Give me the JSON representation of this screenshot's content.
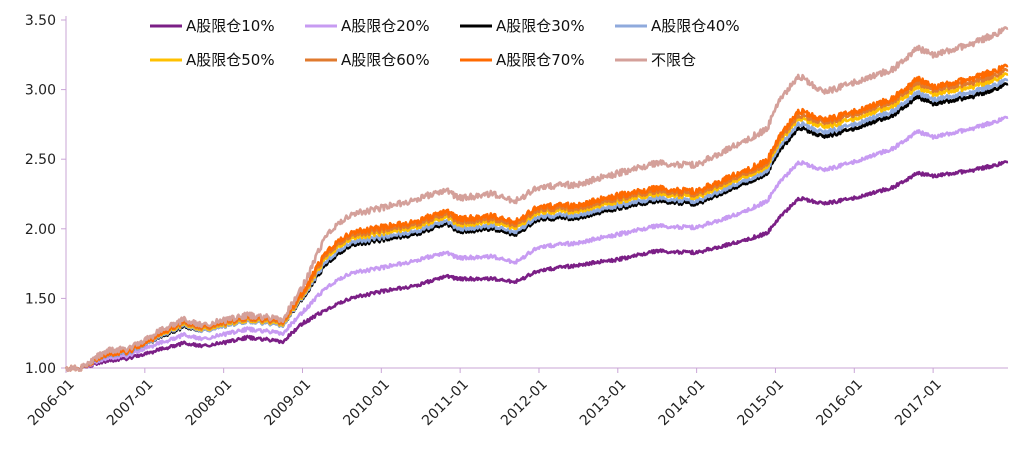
{
  "chart_data": {
    "type": "line",
    "title": "",
    "xlabel": "",
    "ylabel": "",
    "ylim": [
      1.0,
      3.5
    ],
    "y_ticks": [
      "1.00",
      "1.50",
      "2.00",
      "2.50",
      "3.00",
      "3.50"
    ],
    "x_ticks": [
      "2006-01",
      "2007-01",
      "2008-01",
      "2009-01",
      "2010-01",
      "2011-01",
      "2012-01",
      "2013-01",
      "2014-01",
      "2015-01",
      "2016-01",
      "2017-01"
    ],
    "x_range": [
      2006.0,
      2017.95
    ],
    "legend_position": "top",
    "grid": false,
    "series": [
      {
        "name": "A股限仓10%",
        "color": "#7B1F86",
        "points": [
          [
            2006.0,
            1.0
          ],
          [
            2006.2,
            1.0
          ],
          [
            2006.5,
            1.05
          ],
          [
            2006.8,
            1.07
          ],
          [
            2007.0,
            1.1
          ],
          [
            2007.3,
            1.15
          ],
          [
            2007.5,
            1.18
          ],
          [
            2007.75,
            1.16
          ],
          [
            2008.0,
            1.18
          ],
          [
            2008.3,
            1.22
          ],
          [
            2008.6,
            1.2
          ],
          [
            2008.75,
            1.19
          ],
          [
            2009.0,
            1.32
          ],
          [
            2009.3,
            1.42
          ],
          [
            2009.6,
            1.5
          ],
          [
            2010.0,
            1.55
          ],
          [
            2010.5,
            1.6
          ],
          [
            2010.8,
            1.66
          ],
          [
            2011.0,
            1.64
          ],
          [
            2011.4,
            1.64
          ],
          [
            2011.7,
            1.62
          ],
          [
            2012.0,
            1.7
          ],
          [
            2012.5,
            1.74
          ],
          [
            2013.0,
            1.78
          ],
          [
            2013.5,
            1.84
          ],
          [
            2014.0,
            1.83
          ],
          [
            2014.5,
            1.9
          ],
          [
            2014.9,
            1.97
          ],
          [
            2015.0,
            2.05
          ],
          [
            2015.3,
            2.22
          ],
          [
            2015.6,
            2.18
          ],
          [
            2016.0,
            2.22
          ],
          [
            2016.5,
            2.3
          ],
          [
            2016.8,
            2.4
          ],
          [
            2017.0,
            2.38
          ],
          [
            2017.5,
            2.42
          ],
          [
            2017.95,
            2.48
          ]
        ]
      },
      {
        "name": "A股限仓20%",
        "color": "#C79BF2",
        "points": [
          [
            2006.0,
            1.0
          ],
          [
            2006.2,
            1.0
          ],
          [
            2006.5,
            1.07
          ],
          [
            2006.8,
            1.09
          ],
          [
            2007.0,
            1.14
          ],
          [
            2007.3,
            1.2
          ],
          [
            2007.5,
            1.24
          ],
          [
            2007.75,
            1.21
          ],
          [
            2008.0,
            1.24
          ],
          [
            2008.3,
            1.28
          ],
          [
            2008.6,
            1.26
          ],
          [
            2008.75,
            1.25
          ],
          [
            2009.0,
            1.4
          ],
          [
            2009.3,
            1.58
          ],
          [
            2009.6,
            1.68
          ],
          [
            2010.0,
            1.72
          ],
          [
            2010.5,
            1.78
          ],
          [
            2010.8,
            1.83
          ],
          [
            2011.0,
            1.79
          ],
          [
            2011.4,
            1.8
          ],
          [
            2011.7,
            1.76
          ],
          [
            2012.0,
            1.87
          ],
          [
            2012.5,
            1.9
          ],
          [
            2013.0,
            1.96
          ],
          [
            2013.5,
            2.02
          ],
          [
            2014.0,
            2.01
          ],
          [
            2014.5,
            2.1
          ],
          [
            2014.9,
            2.2
          ],
          [
            2015.0,
            2.3
          ],
          [
            2015.3,
            2.48
          ],
          [
            2015.6,
            2.42
          ],
          [
            2016.0,
            2.48
          ],
          [
            2016.5,
            2.58
          ],
          [
            2016.8,
            2.7
          ],
          [
            2017.0,
            2.66
          ],
          [
            2017.5,
            2.72
          ],
          [
            2017.95,
            2.8
          ]
        ]
      },
      {
        "name": "A股限仓30%",
        "color": "#000000",
        "points": [
          [
            2006.0,
            1.0
          ],
          [
            2006.2,
            1.0
          ],
          [
            2006.5,
            1.09
          ],
          [
            2006.8,
            1.11
          ],
          [
            2007.0,
            1.17
          ],
          [
            2007.3,
            1.25
          ],
          [
            2007.5,
            1.3
          ],
          [
            2007.75,
            1.27
          ],
          [
            2008.0,
            1.3
          ],
          [
            2008.3,
            1.34
          ],
          [
            2008.6,
            1.32
          ],
          [
            2008.75,
            1.31
          ],
          [
            2009.0,
            1.5
          ],
          [
            2009.3,
            1.75
          ],
          [
            2009.6,
            1.88
          ],
          [
            2010.0,
            1.92
          ],
          [
            2010.5,
            1.97
          ],
          [
            2010.8,
            2.04
          ],
          [
            2011.0,
            1.98
          ],
          [
            2011.4,
            2.0
          ],
          [
            2011.7,
            1.96
          ],
          [
            2012.0,
            2.07
          ],
          [
            2012.5,
            2.08
          ],
          [
            2013.0,
            2.15
          ],
          [
            2013.5,
            2.2
          ],
          [
            2014.0,
            2.18
          ],
          [
            2014.5,
            2.3
          ],
          [
            2014.9,
            2.4
          ],
          [
            2015.0,
            2.52
          ],
          [
            2015.3,
            2.73
          ],
          [
            2015.6,
            2.66
          ],
          [
            2016.0,
            2.72
          ],
          [
            2016.5,
            2.82
          ],
          [
            2016.8,
            2.95
          ],
          [
            2017.0,
            2.9
          ],
          [
            2017.5,
            2.95
          ],
          [
            2017.95,
            3.04
          ]
        ]
      },
      {
        "name": "A股限仓40%",
        "color": "#8FAADC",
        "points": [
          [
            2006.0,
            1.0
          ],
          [
            2006.2,
            1.0
          ],
          [
            2006.5,
            1.09
          ],
          [
            2006.8,
            1.11
          ],
          [
            2007.0,
            1.17
          ],
          [
            2007.3,
            1.26
          ],
          [
            2007.5,
            1.31
          ],
          [
            2007.75,
            1.27
          ],
          [
            2008.0,
            1.3
          ],
          [
            2008.3,
            1.34
          ],
          [
            2008.6,
            1.32
          ],
          [
            2008.75,
            1.31
          ],
          [
            2009.0,
            1.51
          ],
          [
            2009.3,
            1.77
          ],
          [
            2009.6,
            1.9
          ],
          [
            2010.0,
            1.94
          ],
          [
            2010.5,
            1.99
          ],
          [
            2010.8,
            2.06
          ],
          [
            2011.0,
            2.0
          ],
          [
            2011.4,
            2.02
          ],
          [
            2011.7,
            1.98
          ],
          [
            2012.0,
            2.09
          ],
          [
            2012.5,
            2.1
          ],
          [
            2013.0,
            2.17
          ],
          [
            2013.5,
            2.22
          ],
          [
            2014.0,
            2.2
          ],
          [
            2014.5,
            2.32
          ],
          [
            2014.9,
            2.42
          ],
          [
            2015.0,
            2.55
          ],
          [
            2015.3,
            2.76
          ],
          [
            2015.6,
            2.69
          ],
          [
            2016.0,
            2.75
          ],
          [
            2016.5,
            2.85
          ],
          [
            2016.8,
            2.98
          ],
          [
            2017.0,
            2.93
          ],
          [
            2017.5,
            2.98
          ],
          [
            2017.95,
            3.07
          ]
        ]
      },
      {
        "name": "A股限仓50%",
        "color": "#FFC000",
        "points": [
          [
            2006.0,
            1.0
          ],
          [
            2006.2,
            1.0
          ],
          [
            2006.5,
            1.1
          ],
          [
            2006.8,
            1.12
          ],
          [
            2007.0,
            1.18
          ],
          [
            2007.3,
            1.27
          ],
          [
            2007.5,
            1.32
          ],
          [
            2007.75,
            1.28
          ],
          [
            2008.0,
            1.31
          ],
          [
            2008.3,
            1.35
          ],
          [
            2008.6,
            1.33
          ],
          [
            2008.75,
            1.32
          ],
          [
            2009.0,
            1.52
          ],
          [
            2009.3,
            1.8
          ],
          [
            2009.6,
            1.93
          ],
          [
            2010.0,
            1.97
          ],
          [
            2010.5,
            2.02
          ],
          [
            2010.8,
            2.09
          ],
          [
            2011.0,
            2.03
          ],
          [
            2011.4,
            2.05
          ],
          [
            2011.7,
            2.01
          ],
          [
            2012.0,
            2.12
          ],
          [
            2012.5,
            2.13
          ],
          [
            2013.0,
            2.2
          ],
          [
            2013.5,
            2.25
          ],
          [
            2014.0,
            2.23
          ],
          [
            2014.5,
            2.35
          ],
          [
            2014.9,
            2.45
          ],
          [
            2015.0,
            2.58
          ],
          [
            2015.3,
            2.8
          ],
          [
            2015.6,
            2.73
          ],
          [
            2016.0,
            2.79
          ],
          [
            2016.5,
            2.89
          ],
          [
            2016.8,
            3.02
          ],
          [
            2017.0,
            2.97
          ],
          [
            2017.5,
            3.02
          ],
          [
            2017.95,
            3.11
          ]
        ]
      },
      {
        "name": "A股限仓60%",
        "color": "#E07A2E",
        "points": [
          [
            2006.0,
            1.0
          ],
          [
            2006.2,
            1.0
          ],
          [
            2006.5,
            1.1
          ],
          [
            2006.8,
            1.12
          ],
          [
            2007.0,
            1.18
          ],
          [
            2007.3,
            1.28
          ],
          [
            2007.5,
            1.33
          ],
          [
            2007.75,
            1.29
          ],
          [
            2008.0,
            1.32
          ],
          [
            2008.3,
            1.36
          ],
          [
            2008.6,
            1.34
          ],
          [
            2008.75,
            1.33
          ],
          [
            2009.0,
            1.53
          ],
          [
            2009.3,
            1.82
          ],
          [
            2009.6,
            1.95
          ],
          [
            2010.0,
            1.99
          ],
          [
            2010.5,
            2.04
          ],
          [
            2010.8,
            2.11
          ],
          [
            2011.0,
            2.05
          ],
          [
            2011.4,
            2.07
          ],
          [
            2011.7,
            2.03
          ],
          [
            2012.0,
            2.14
          ],
          [
            2012.5,
            2.15
          ],
          [
            2013.0,
            2.22
          ],
          [
            2013.5,
            2.27
          ],
          [
            2014.0,
            2.25
          ],
          [
            2014.5,
            2.37
          ],
          [
            2014.9,
            2.47
          ],
          [
            2015.0,
            2.6
          ],
          [
            2015.3,
            2.82
          ],
          [
            2015.6,
            2.76
          ],
          [
            2016.0,
            2.82
          ],
          [
            2016.5,
            2.92
          ],
          [
            2016.8,
            3.05
          ],
          [
            2017.0,
            3.0
          ],
          [
            2017.5,
            3.05
          ],
          [
            2017.95,
            3.14
          ]
        ]
      },
      {
        "name": "A股限仓70%",
        "color": "#FF6A00",
        "points": [
          [
            2006.0,
            1.0
          ],
          [
            2006.2,
            1.0
          ],
          [
            2006.5,
            1.1
          ],
          [
            2006.8,
            1.12
          ],
          [
            2007.0,
            1.18
          ],
          [
            2007.3,
            1.28
          ],
          [
            2007.5,
            1.34
          ],
          [
            2007.75,
            1.3
          ],
          [
            2008.0,
            1.33
          ],
          [
            2008.3,
            1.37
          ],
          [
            2008.6,
            1.35
          ],
          [
            2008.75,
            1.34
          ],
          [
            2009.0,
            1.54
          ],
          [
            2009.3,
            1.84
          ],
          [
            2009.6,
            1.97
          ],
          [
            2010.0,
            2.01
          ],
          [
            2010.5,
            2.06
          ],
          [
            2010.8,
            2.13
          ],
          [
            2011.0,
            2.07
          ],
          [
            2011.4,
            2.09
          ],
          [
            2011.7,
            2.05
          ],
          [
            2012.0,
            2.16
          ],
          [
            2012.5,
            2.17
          ],
          [
            2013.0,
            2.24
          ],
          [
            2013.5,
            2.29
          ],
          [
            2014.0,
            2.27
          ],
          [
            2014.5,
            2.39
          ],
          [
            2014.9,
            2.49
          ],
          [
            2015.0,
            2.62
          ],
          [
            2015.3,
            2.85
          ],
          [
            2015.6,
            2.78
          ],
          [
            2016.0,
            2.84
          ],
          [
            2016.5,
            2.94
          ],
          [
            2016.8,
            3.08
          ],
          [
            2017.0,
            3.02
          ],
          [
            2017.5,
            3.08
          ],
          [
            2017.95,
            3.17
          ]
        ]
      },
      {
        "name": "不限仓",
        "color": "#D4A09A",
        "points": [
          [
            2006.0,
            1.0
          ],
          [
            2006.2,
            1.0
          ],
          [
            2006.5,
            1.12
          ],
          [
            2006.8,
            1.14
          ],
          [
            2007.0,
            1.2
          ],
          [
            2007.3,
            1.3
          ],
          [
            2007.5,
            1.35
          ],
          [
            2007.75,
            1.31
          ],
          [
            2008.0,
            1.34
          ],
          [
            2008.3,
            1.38
          ],
          [
            2008.6,
            1.36
          ],
          [
            2008.75,
            1.35
          ],
          [
            2009.0,
            1.58
          ],
          [
            2009.3,
            1.96
          ],
          [
            2009.6,
            2.1
          ],
          [
            2010.0,
            2.15
          ],
          [
            2010.5,
            2.22
          ],
          [
            2010.8,
            2.28
          ],
          [
            2011.0,
            2.22
          ],
          [
            2011.4,
            2.25
          ],
          [
            2011.7,
            2.2
          ],
          [
            2012.0,
            2.3
          ],
          [
            2012.5,
            2.32
          ],
          [
            2013.0,
            2.4
          ],
          [
            2013.5,
            2.47
          ],
          [
            2014.0,
            2.46
          ],
          [
            2014.5,
            2.6
          ],
          [
            2014.9,
            2.72
          ],
          [
            2015.0,
            2.88
          ],
          [
            2015.3,
            3.1
          ],
          [
            2015.6,
            2.98
          ],
          [
            2016.0,
            3.05
          ],
          [
            2016.5,
            3.15
          ],
          [
            2016.8,
            3.3
          ],
          [
            2017.0,
            3.25
          ],
          [
            2017.5,
            3.33
          ],
          [
            2017.95,
            3.44
          ]
        ]
      }
    ]
  }
}
